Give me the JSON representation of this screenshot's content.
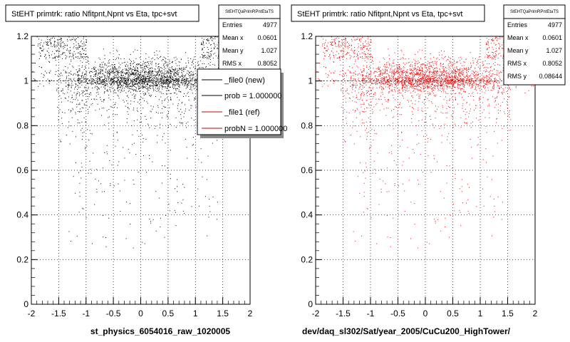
{
  "colors": {
    "left_points": "#000000",
    "right_points": "#ff0000",
    "reference_line": "#000000",
    "legend_ref": "#cc0000"
  },
  "chart_data": [
    {
      "type": "scatter",
      "title": "StEHT primtrk: ratio Nfitpnt,Npnt vs Eta, tpc+svt",
      "xlabel": "st_physics_6054016_raw_1020005",
      "ylabel": "",
      "xlim": [
        -2,
        2
      ],
      "ylim": [
        0,
        1.2
      ],
      "x_ticks": [
        "-2",
        "-1.5",
        "-1",
        "-0.5",
        "0",
        "0.5",
        "1",
        "1.5",
        "2"
      ],
      "y_ticks": [
        "0",
        "0.2",
        "0.4",
        "0.6",
        "0.8",
        "1",
        "1.2"
      ],
      "grid": true,
      "stats": {
        "header": "StEHTQaPrimRPntEtaTS",
        "rows": [
          {
            "label": "Entries",
            "value": "4977"
          },
          {
            "label": "Mean x",
            "value": "0.0601"
          },
          {
            "label": "Mean y",
            "value": "1.027"
          },
          {
            "label": "RMS x",
            "value": "0.8052"
          }
        ]
      },
      "legend": {
        "placement": "top-right",
        "entries": [
          "_file0 (new)",
          "prob = 1.000000",
          "_file1 (ref)",
          "probN = 1.000000"
        ]
      },
      "series": [
        {
          "name": "_file0 (new)",
          "color": "#000000",
          "entries": 4977
        }
      ]
    },
    {
      "type": "scatter",
      "title": "StEHT primtrk: ratio Nfitpnt,Npnt vs Eta, tpc+svt",
      "xlabel": "dev/daq_sl302/Sat/year_2005/CuCu200_HighTower/",
      "ylabel": "",
      "xlim": [
        -2,
        2
      ],
      "ylim": [
        0,
        1.2
      ],
      "x_ticks": [
        "-2",
        "-1.5",
        "-1",
        "-0.5",
        "0",
        "0.5",
        "1",
        "1.5",
        "2"
      ],
      "y_ticks": [
        "0",
        "0.2",
        "0.4",
        "0.6",
        "0.8",
        "1",
        "1.2"
      ],
      "grid": true,
      "stats": {
        "header": "StEHTQaPrimRPntEtaTS",
        "rows": [
          {
            "label": "Entries",
            "value": "4977"
          },
          {
            "label": "Mean x",
            "value": "0.0601"
          },
          {
            "label": "Mean y",
            "value": "1.027"
          },
          {
            "label": "RMS x",
            "value": "0.8052"
          },
          {
            "label": "RMS y",
            "value": "0.08644"
          }
        ]
      },
      "series": [
        {
          "name": "_file1 (ref)",
          "color": "#ff0000",
          "entries": 4977
        }
      ]
    }
  ]
}
